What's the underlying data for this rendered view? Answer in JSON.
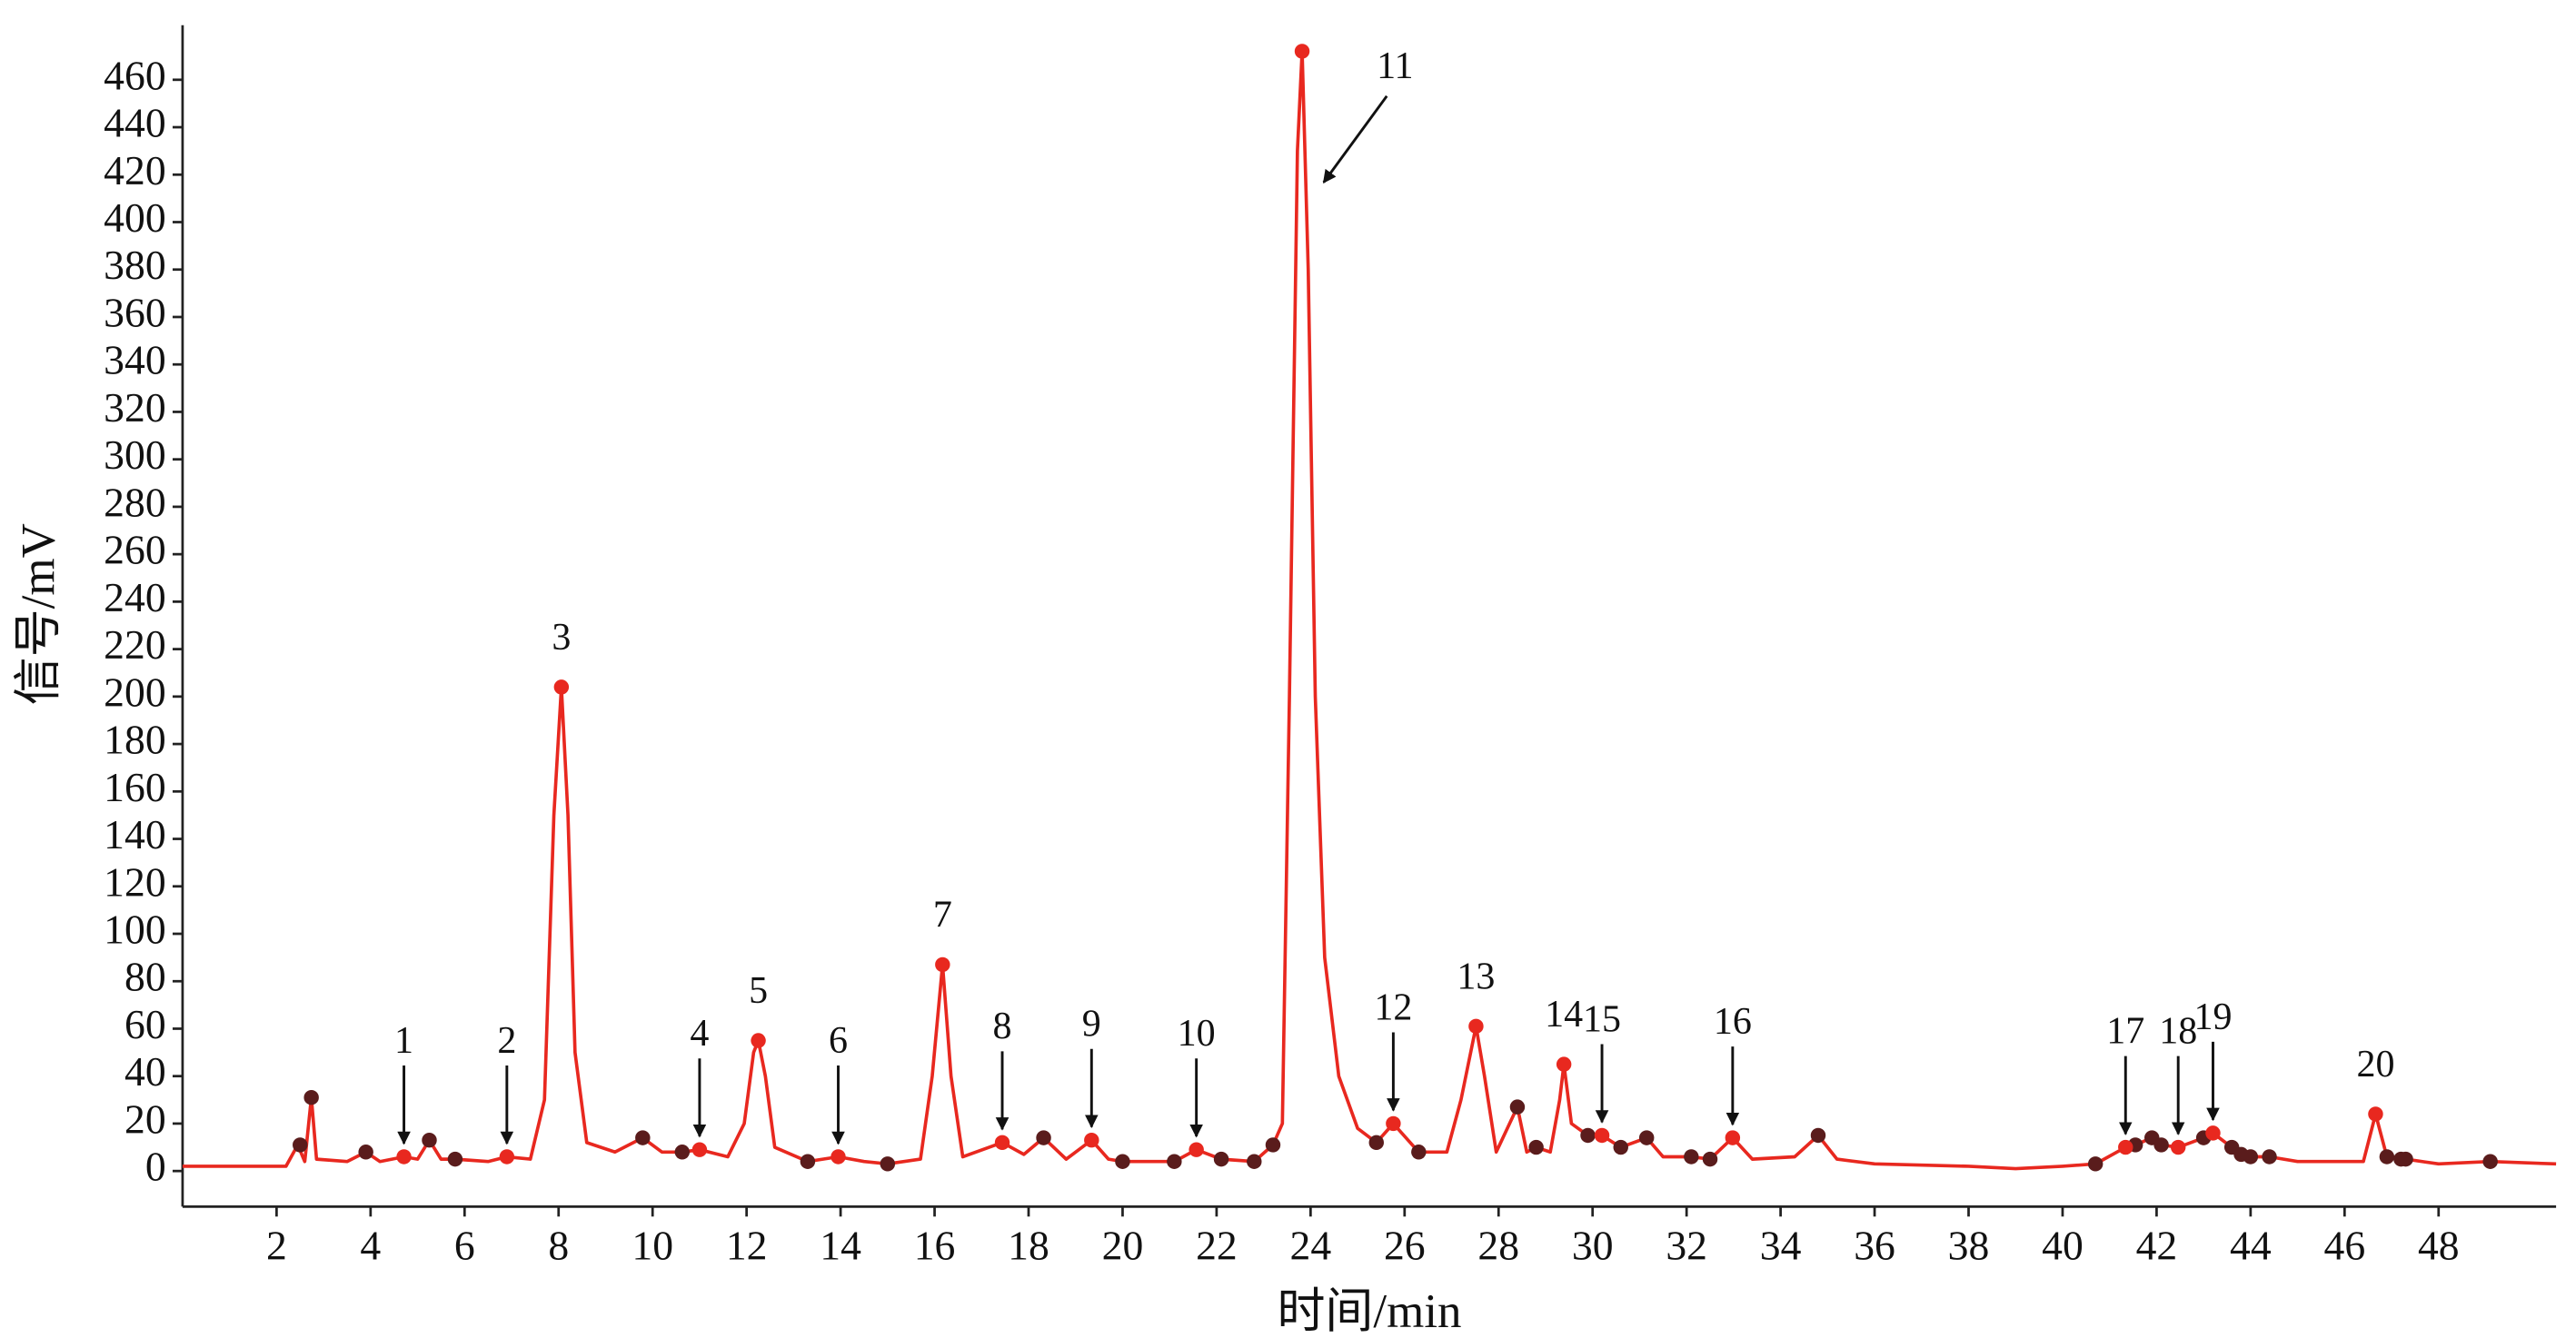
{
  "chart_data": {
    "type": "line",
    "xlabel": "时间/min",
    "ylabel": "信号/mV",
    "xlim": [
      0,
      50.5
    ],
    "ylim": [
      -15,
      483
    ],
    "xticks": [
      2,
      4,
      6,
      8,
      10,
      12,
      14,
      16,
      18,
      20,
      22,
      24,
      26,
      28,
      30,
      32,
      34,
      36,
      38,
      40,
      42,
      44,
      46,
      48
    ],
    "yticks": [
      0,
      20,
      40,
      60,
      80,
      100,
      120,
      140,
      160,
      180,
      200,
      220,
      240,
      260,
      280,
      300,
      320,
      340,
      360,
      380,
      400,
      420,
      440,
      460
    ],
    "series": [
      {
        "color": "#e8281f",
        "x": [
          0,
          2.2,
          2.45,
          2.6,
          2.74,
          2.85,
          3.5,
          3.9,
          4.2,
          4.71,
          5.0,
          5.25,
          5.5,
          5.8,
          6.5,
          6.9,
          7.4,
          7.7,
          7.9,
          8.06,
          8.2,
          8.35,
          8.6,
          9.2,
          9.79,
          10.2,
          10.63,
          11.0,
          11.6,
          11.95,
          12.15,
          12.25,
          12.4,
          12.6,
          13.3,
          13.95,
          14.5,
          15.0,
          15.7,
          15.95,
          16.17,
          16.35,
          16.6,
          17.44,
          17.9,
          18.32,
          18.8,
          19.34,
          19.7,
          20.0,
          21.1,
          21.57,
          22.1,
          22.8,
          23.2,
          23.4,
          23.55,
          23.72,
          23.82,
          23.95,
          24.1,
          24.3,
          24.6,
          25.0,
          25.4,
          25.76,
          26.3,
          26.9,
          27.2,
          27.52,
          27.7,
          27.95,
          28.4,
          28.6,
          28.8,
          29.1,
          29.3,
          29.39,
          29.55,
          29.9,
          30.2,
          30.6,
          31.15,
          31.5,
          32.1,
          32.5,
          32.98,
          33.4,
          34.3,
          34.8,
          35.2,
          36,
          38,
          39,
          40,
          40.7,
          41.34,
          41.55,
          41.9,
          42.1,
          42.46,
          43.0,
          43.2,
          43.6,
          43.8,
          44.0,
          44.4,
          45,
          46.4,
          46.66,
          46.9,
          47.2,
          47.3,
          48,
          49.1,
          50.5
        ],
        "values": [
          2,
          2,
          11,
          4,
          31,
          5,
          4,
          8,
          4,
          6,
          5,
          13,
          5,
          5,
          4,
          6,
          5,
          30,
          150,
          204,
          150,
          50,
          12,
          8,
          14,
          8,
          8,
          9,
          6,
          20,
          50,
          55,
          40,
          10,
          4,
          6,
          4,
          3,
          5,
          40,
          87,
          40,
          6,
          12,
          7,
          14,
          5,
          13,
          5,
          4,
          4,
          9,
          5,
          4,
          11,
          20,
          200,
          430,
          472,
          380,
          200,
          90,
          40,
          18,
          12,
          20,
          8,
          8,
          30,
          61,
          40,
          8,
          27,
          8,
          10,
          8,
          30,
          45,
          20,
          15,
          15,
          10,
          14,
          6,
          6,
          5,
          14,
          5,
          6,
          15,
          5,
          3,
          2,
          1,
          2,
          3,
          10,
          11,
          14,
          11,
          10,
          14,
          16,
          10,
          7,
          6,
          6,
          4,
          4,
          24,
          6,
          5,
          5,
          3,
          4,
          3
        ]
      }
    ],
    "annotations": [
      {
        "label": "1",
        "x": 4.71,
        "y": 6,
        "arrow": "down"
      },
      {
        "label": "2",
        "x": 6.9,
        "y": 6,
        "arrow": "down"
      },
      {
        "label": "3",
        "x": 8.06,
        "y": 204,
        "arrow": "none"
      },
      {
        "label": "4",
        "x": 11.0,
        "y": 9,
        "arrow": "down"
      },
      {
        "label": "5",
        "x": 12.25,
        "y": 55,
        "arrow": "none"
      },
      {
        "label": "6",
        "x": 13.95,
        "y": 6,
        "arrow": "down"
      },
      {
        "label": "7",
        "x": 16.17,
        "y": 87,
        "arrow": "none"
      },
      {
        "label": "8",
        "x": 17.44,
        "y": 12,
        "arrow": "down"
      },
      {
        "label": "9",
        "x": 19.34,
        "y": 13,
        "arrow": "down"
      },
      {
        "label": "10",
        "x": 21.57,
        "y": 9,
        "arrow": "down"
      },
      {
        "label": "11",
        "x": 23.82,
        "y": 472,
        "arrow": "diagonal"
      },
      {
        "label": "12",
        "x": 25.76,
        "y": 20,
        "arrow": "down"
      },
      {
        "label": "13",
        "x": 27.52,
        "y": 61,
        "arrow": "none"
      },
      {
        "label": "14",
        "x": 29.39,
        "y": 45,
        "arrow": "none"
      },
      {
        "label": "15",
        "x": 30.2,
        "y": 15,
        "arrow": "down"
      },
      {
        "label": "16",
        "x": 32.98,
        "y": 14,
        "arrow": "down"
      },
      {
        "label": "17",
        "x": 41.34,
        "y": 10,
        "arrow": "down"
      },
      {
        "label": "18",
        "x": 42.46,
        "y": 10,
        "arrow": "down"
      },
      {
        "label": "19",
        "x": 43.2,
        "y": 16,
        "arrow": "down"
      },
      {
        "label": "20",
        "x": 46.66,
        "y": 24,
        "arrow": "none"
      }
    ],
    "annotation_color": "#e8281f",
    "peaks": {
      "color": "#5a1c1c",
      "x": [
        2.5,
        2.74,
        3.9,
        5.25,
        5.8,
        9.79,
        10.63,
        13.3,
        15.0,
        18.32,
        20.0,
        21.1,
        22.1,
        22.8,
        23.2,
        25.4,
        26.3,
        28.4,
        28.8,
        29.9,
        30.6,
        31.15,
        32.1,
        32.5,
        34.8,
        40.7,
        41.55,
        41.9,
        42.1,
        43.0,
        43.6,
        43.8,
        44.0,
        44.4,
        46.9,
        47.2,
        47.3,
        49.1
      ],
      "values": [
        11,
        31,
        8,
        13,
        5,
        14,
        8,
        4,
        3,
        14,
        4,
        4,
        5,
        4,
        11,
        12,
        8,
        27,
        10,
        15,
        10,
        14,
        6,
        5,
        15,
        3,
        11,
        14,
        11,
        14,
        10,
        7,
        6,
        6,
        6,
        5,
        5,
        4
      ]
    }
  }
}
